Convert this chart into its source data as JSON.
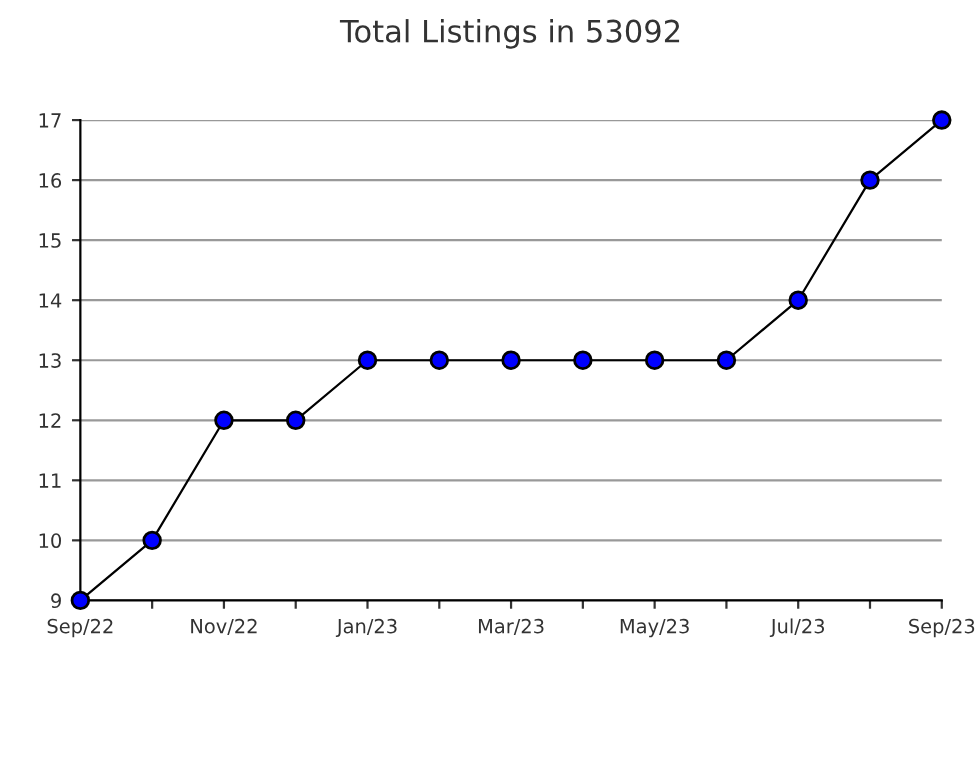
{
  "chart_data": {
    "type": "line",
    "title": "Total Listings in 53092",
    "categories": [
      "Sep/22",
      null,
      "Nov/22",
      null,
      "Jan/23",
      null,
      "Mar/23",
      null,
      "May/23",
      null,
      "Jul/23",
      null,
      "Sep/23"
    ],
    "series": [
      {
        "color": "#0000ff",
        "values": [
          9,
          10,
          12,
          12,
          13,
          13,
          13,
          13,
          13,
          13,
          14,
          16,
          17
        ]
      }
    ],
    "ylim": [
      9,
      17
    ],
    "yticks": [
      9,
      10,
      11,
      12,
      13,
      14,
      15,
      16,
      17
    ],
    "grid": "y",
    "marker": "circle",
    "line_style": "solid",
    "legend": false
  }
}
